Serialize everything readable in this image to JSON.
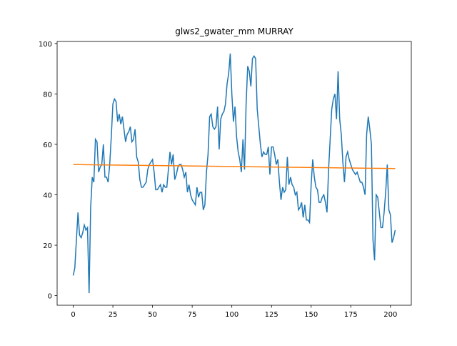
{
  "chart_data": {
    "type": "line",
    "title": "glws2_gwater_mm MURRAY",
    "xlim": [
      -10.15,
      213.15
    ],
    "ylim": [
      -3.8,
      100.8
    ],
    "xticks": [
      0,
      25,
      50,
      75,
      100,
      125,
      150,
      175,
      200
    ],
    "yticks": [
      0,
      20,
      40,
      60,
      80,
      100
    ],
    "series": [
      {
        "color": "#1f77b4",
        "x": [
          0,
          1,
          2,
          3,
          4,
          5,
          6,
          7,
          8,
          9,
          10,
          11,
          12,
          13,
          14,
          15,
          16,
          17,
          18,
          19,
          20,
          21,
          22,
          23,
          24,
          25,
          26,
          27,
          28,
          29,
          30,
          31,
          32,
          33,
          34,
          35,
          36,
          37,
          38,
          39,
          40,
          41,
          42,
          43,
          44,
          45,
          46,
          47,
          48,
          49,
          50,
          51,
          52,
          53,
          54,
          55,
          56,
          57,
          58,
          59,
          60,
          61,
          62,
          63,
          64,
          65,
          66,
          67,
          68,
          69,
          70,
          71,
          72,
          73,
          74,
          75,
          76,
          77,
          78,
          79,
          80,
          81,
          82,
          83,
          84,
          85,
          86,
          87,
          88,
          89,
          90,
          91,
          92,
          93,
          94,
          95,
          96,
          97,
          98,
          99,
          100,
          101,
          102,
          103,
          104,
          105,
          106,
          107,
          108,
          109,
          110,
          111,
          112,
          113,
          114,
          115,
          116,
          117,
          118,
          119,
          120,
          121,
          122,
          123,
          124,
          125,
          126,
          127,
          128,
          129,
          130,
          131,
          132,
          133,
          134,
          135,
          136,
          137,
          138,
          139,
          140,
          141,
          142,
          143,
          144,
          145,
          146,
          147,
          148,
          149,
          150,
          151,
          152,
          153,
          154,
          155,
          156,
          157,
          158,
          159,
          160,
          161,
          162,
          163,
          164,
          165,
          166,
          167,
          168,
          169,
          170,
          171,
          172,
          173,
          174,
          175,
          176,
          177,
          178,
          179,
          180,
          181,
          182,
          183,
          184,
          185,
          186,
          187,
          188,
          189,
          190,
          191,
          192,
          193,
          194,
          195,
          196,
          197,
          198,
          199,
          200,
          201,
          202,
          203
        ],
        "values": [
          8,
          11,
          22,
          33,
          24,
          23,
          25,
          28,
          26,
          27,
          1,
          35,
          47,
          45,
          62,
          61,
          49,
          51,
          52,
          60,
          47,
          47,
          45,
          52,
          63,
          76,
          78,
          77,
          69,
          72,
          68,
          71,
          66,
          61,
          64,
          65,
          67,
          61,
          62,
          66,
          55,
          53,
          46,
          43,
          43,
          44,
          45,
          50,
          52,
          53,
          54,
          49,
          42,
          42,
          43,
          44,
          41,
          44,
          43,
          43,
          50,
          57,
          52,
          56,
          46,
          48,
          51,
          52,
          52,
          50,
          47,
          49,
          41,
          44,
          40,
          38,
          37,
          36,
          43,
          39,
          41,
          41,
          34,
          36,
          49,
          56,
          71,
          72,
          67,
          66,
          67,
          75,
          58,
          70,
          72,
          73,
          76,
          84,
          88,
          96,
          80,
          69,
          75,
          63,
          57,
          54,
          49,
          62,
          50,
          76,
          91,
          89,
          83,
          94,
          95,
          94,
          74,
          67,
          60,
          55,
          57,
          56,
          56,
          59,
          48,
          59,
          59,
          56,
          52,
          54,
          45,
          38,
          43,
          41,
          42,
          55,
          44,
          47,
          44,
          43,
          40,
          41,
          34,
          35,
          37,
          31,
          36,
          30,
          30,
          29,
          44,
          54,
          47,
          43,
          42,
          37,
          37,
          39,
          40,
          37,
          33,
          50,
          62,
          74,
          78,
          80,
          70,
          89,
          70,
          64,
          53,
          45,
          55,
          57,
          54,
          52,
          50,
          49,
          48,
          49,
          47,
          45,
          45,
          43,
          40,
          64,
          71,
          66,
          60,
          22,
          14,
          40,
          39,
          33,
          27,
          27,
          33,
          41,
          52,
          34,
          32,
          21,
          23,
          26
        ]
      },
      {
        "color": "#ff7f0e",
        "x": [
          0,
          203
        ],
        "values": [
          52.0,
          50.4
        ]
      }
    ]
  }
}
